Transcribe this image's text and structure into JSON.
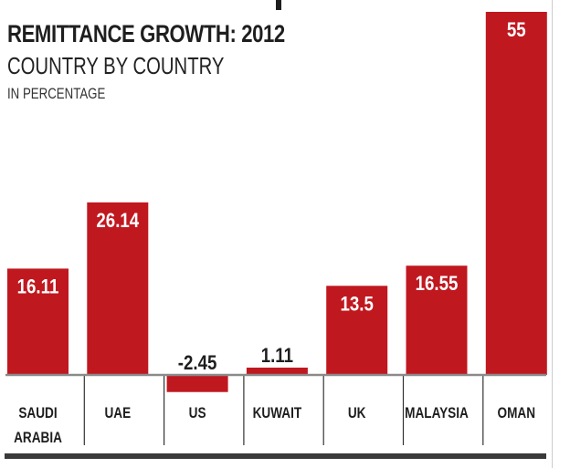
{
  "chart_data": {
    "type": "bar",
    "title": "REMITTANCE GROWTH: 2012",
    "subtitle": "COUNTRY BY COUNTRY",
    "unit_label": "IN PERCENTAGE",
    "categories": [
      [
        "SAUDI",
        "ARABIA"
      ],
      [
        "UAE"
      ],
      [
        "US"
      ],
      [
        "KUWAIT"
      ],
      [
        "UK"
      ],
      [
        "MALAYSIA"
      ],
      [
        "OMAN"
      ]
    ],
    "values": [
      16.11,
      26.14,
      -2.45,
      1.11,
      13.5,
      16.55,
      55
    ],
    "value_labels": [
      "16.11",
      "26.14",
      "-2.45",
      "1.11",
      "13.5",
      "16.55",
      "55"
    ],
    "xlabel": "",
    "ylabel": "",
    "ylim": [
      -2.45,
      55
    ],
    "grid": false,
    "legend": "none",
    "colors": {
      "bar": "#c0181f",
      "baseline": "#8a8a8a",
      "rule": "#3a3a3a"
    }
  }
}
